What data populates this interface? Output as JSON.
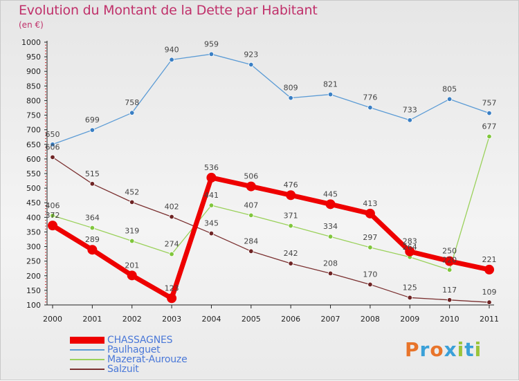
{
  "header": {
    "title": "Evolution du Montant de la Dette par Habitant",
    "subtitle": "(en €)"
  },
  "brand": {
    "text": "Proxiti",
    "colors": [
      "#e8742a",
      "#3aa0d8",
      "#e8742a",
      "#3aa0d8",
      "#9ac43a",
      "#3aa0d8",
      "#9ac43a"
    ]
  },
  "chart_data": {
    "type": "line",
    "categories": [
      "2000",
      "2001",
      "2002",
      "2003",
      "2004",
      "2005",
      "2006",
      "2007",
      "2008",
      "2009",
      "2010",
      "2011"
    ],
    "ylim": [
      100,
      1000
    ],
    "yticks": [
      100,
      150,
      200,
      250,
      300,
      350,
      400,
      450,
      500,
      550,
      600,
      650,
      700,
      750,
      800,
      850,
      900,
      950,
      1000
    ],
    "grid": false,
    "legend_placement": "bottom-left",
    "series": [
      {
        "name": "Paulhaguet",
        "color": "#5b9bd5",
        "point_color": "#3a7fc4",
        "values": [
          650,
          699,
          758,
          940,
          959,
          923,
          809,
          821,
          776,
          733,
          805,
          757
        ]
      },
      {
        "name": "Mazerat-Aurouze",
        "color": "#9ad15a",
        "point_color": "#80c63c",
        "values": [
          406,
          364,
          319,
          274,
          441,
          407,
          371,
          334,
          297,
          264,
          220,
          677
        ]
      },
      {
        "name": "Salzuit",
        "color": "#7a2f2f",
        "point_color": "#6e2424",
        "values": [
          606,
          515,
          452,
          402,
          345,
          284,
          242,
          208,
          170,
          125,
          117,
          109
        ]
      },
      {
        "name": "CHASSAGNES",
        "color": "#ee0000",
        "point_color": "#ee0000",
        "values": [
          372,
          289,
          201,
          123,
          536,
          506,
          476,
          445,
          413,
          283,
          250,
          221
        ]
      }
    ],
    "data_labels": [
      [
        "650",
        "699",
        "758",
        "940",
        "959",
        "923",
        "809",
        "821",
        "776",
        "733",
        "805",
        "757"
      ],
      [
        "406",
        "364",
        "319",
        "274",
        "441",
        "407",
        "371",
        "334",
        "297",
        "264",
        "220",
        "677"
      ],
      [
        "606",
        "515",
        "452",
        "402",
        "345",
        "284",
        "242",
        "208",
        "170",
        "125",
        "117",
        "109"
      ],
      [
        "372",
        "289",
        "201",
        "123",
        "536",
        "506",
        "476",
        "445",
        "413",
        "283",
        "250",
        "221"
      ]
    ]
  },
  "legend": {
    "items": [
      {
        "label": "CHASSAGNES",
        "color": "#ee0000",
        "thick": true
      },
      {
        "label": "Paulhaguet",
        "color": "#5b9bd5",
        "thick": false
      },
      {
        "label": "Mazerat-Aurouze",
        "color": "#9ad15a",
        "thick": false
      },
      {
        "label": "Salzuit",
        "color": "#7a2f2f",
        "thick": false
      }
    ]
  }
}
